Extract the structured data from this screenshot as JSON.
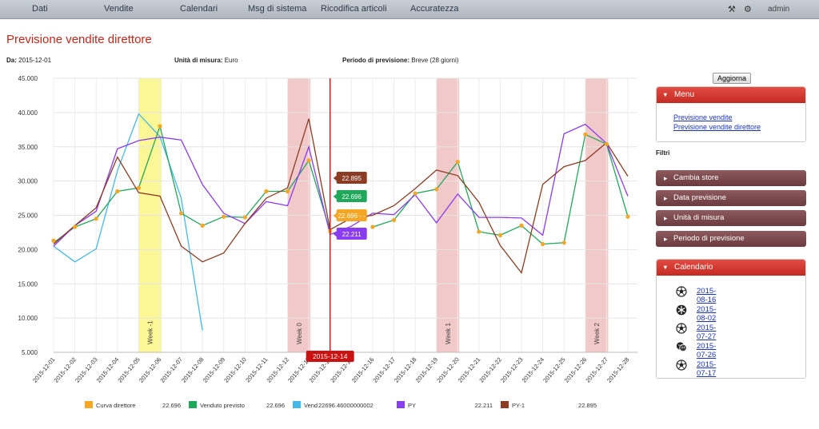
{
  "nav": {
    "items": [
      "Dati",
      "Vendite",
      "Calendari",
      "Msg di sistema",
      "Ricodifica articoli",
      "Accuratezza"
    ],
    "user": "admin"
  },
  "page": {
    "title": "Previsione vendite direttore",
    "from_label": "Da:",
    "from_value": "2015-12-01",
    "unit_label": "Unità di misura:",
    "unit_value": "Euro",
    "period_label": "Periodo di previsione:",
    "period_value": "Breve (28 giorni)"
  },
  "panel": {
    "refresh_label": "Aggiorna",
    "menu_title": "Menu",
    "menu_links": [
      "Previsione vendite",
      "Previsione vendite direttore"
    ],
    "filters_title": "Filtri",
    "filters": [
      "Cambia store",
      "Data previsione",
      "Unità di misura",
      "Periodo di previsione"
    ],
    "calendar_title": "Calendario",
    "calendar_dates": [
      "2015-08-16",
      "2015-08-02",
      "2015-07-27",
      "2015-07-26",
      "2015-07-17"
    ]
  },
  "colors": {
    "curva_direttore": "#f5a623",
    "venduto_previsto": "#20a85a",
    "venduto": "#45b8e8",
    "py": "#8a3cf0",
    "py1": "#8b3c22",
    "week_band": "#f2c9c9",
    "highlight_band": "#fbf696",
    "cursor": "#cc1111"
  },
  "chart_data": {
    "type": "line",
    "x": [
      "2015-12-01",
      "2015-12-02",
      "2015-12-03",
      "2015-12-04",
      "2015-12-05",
      "2015-12-06",
      "2015-12-07",
      "2015-12-08",
      "2015-12-09",
      "2015-12-10",
      "2015-12-11",
      "2015-12-12",
      "2015-12-13",
      "2015-12-14",
      "2015-12-15",
      "2015-12-16",
      "2015-12-17",
      "2015-12-18",
      "2015-12-19",
      "2015-12-20",
      "2015-12-21",
      "2015-12-22",
      "2015-12-23",
      "2015-12-24",
      "2015-12-25",
      "2015-12-26",
      "2015-12-27",
      "2015-12-28"
    ],
    "ylim": [
      5000,
      45000
    ],
    "yticks": [
      "5.000",
      "10.000",
      "15.000",
      "20.000",
      "25.000",
      "30.000",
      "35.000",
      "40.000",
      "45.000"
    ],
    "grid": true,
    "week_bands": [
      {
        "label": "Week -1",
        "start": "2015-12-05",
        "end": "2015-12-06",
        "style": "highlight"
      },
      {
        "label": "Week 0",
        "start": "2015-12-12",
        "end": "2015-12-13",
        "style": "normal"
      },
      {
        "label": "Week 1",
        "start": "2015-12-19",
        "end": "2015-12-20",
        "style": "normal"
      },
      {
        "label": "Week 2",
        "start": "2015-12-26",
        "end": "2015-12-27",
        "style": "normal"
      }
    ],
    "cursor": {
      "x": "2015-12-14",
      "label": "2015-12-14"
    },
    "tooltips": [
      {
        "series": "PY-1",
        "value": "22.895"
      },
      {
        "series": "Venduto previsto",
        "value": "22.696"
      },
      {
        "series": "Curva direttore",
        "value": "22.696 - -"
      },
      {
        "series": "PY",
        "value": "22.211"
      }
    ],
    "series": [
      {
        "name": "Curva direttore",
        "color_key": "curva_direttore",
        "markers": true,
        "values": [
          21300,
          23300,
          24500,
          28500,
          29000,
          38000,
          25300,
          23500,
          24800,
          24700,
          28500,
          28500,
          33000,
          22700,
          null,
          23300,
          24300,
          28200,
          28800,
          32800,
          22600,
          22100,
          23500,
          20800,
          21000,
          36800,
          35400,
          24800
        ]
      },
      {
        "name": "Venduto previsto",
        "color_key": "venduto_previsto",
        "markers": false,
        "values": [
          21000,
          23300,
          24500,
          28500,
          29000,
          38000,
          25300,
          23500,
          24800,
          24700,
          28500,
          28500,
          33000,
          22700,
          null,
          23300,
          24300,
          28200,
          28800,
          32800,
          22600,
          22100,
          23500,
          20800,
          21000,
          36800,
          35400,
          24800
        ]
      },
      {
        "name": "Venduto",
        "color_key": "venduto",
        "markers": false,
        "values": [
          20500,
          18200,
          20100,
          31500,
          39800,
          36500,
          27500,
          8200,
          null,
          null,
          null,
          null,
          null,
          null,
          null,
          null,
          null,
          null,
          null,
          null,
          null,
          null,
          null,
          null,
          null,
          null,
          null,
          null
        ]
      },
      {
        "name": "PY",
        "color_key": "py",
        "markers": false,
        "values": [
          20500,
          23500,
          25600,
          34700,
          35900,
          36400,
          36000,
          29500,
          25300,
          23800,
          27000,
          26400,
          35000,
          22200,
          23400,
          25300,
          25100,
          28000,
          23900,
          28100,
          24700,
          24700,
          24600,
          22100,
          36900,
          38300,
          35500,
          27800
        ]
      },
      {
        "name": "PY-1",
        "color_key": "py1",
        "markers": false,
        "values": [
          20800,
          23500,
          26100,
          33500,
          28300,
          27800,
          20500,
          18200,
          19500,
          23800,
          27500,
          29000,
          39100,
          22900,
          24600,
          25000,
          26400,
          28900,
          31600,
          30800,
          26900,
          20600,
          16600,
          29500,
          32100,
          33000,
          35600,
          30700
        ]
      }
    ],
    "legend": [
      {
        "label": "Curva direttore",
        "value": "22.696",
        "color_key": "curva_direttore"
      },
      {
        "label": "Venduto previsto",
        "value": "22.696",
        "color_key": "venduto_previsto"
      },
      {
        "label": "Vend",
        "value": "22696.46000000002",
        "color_key": "venduto"
      },
      {
        "label": "PY",
        "value": "22.211",
        "color_key": "py"
      },
      {
        "label": "PY-1",
        "value": "22.895",
        "color_key": "py1"
      }
    ]
  }
}
